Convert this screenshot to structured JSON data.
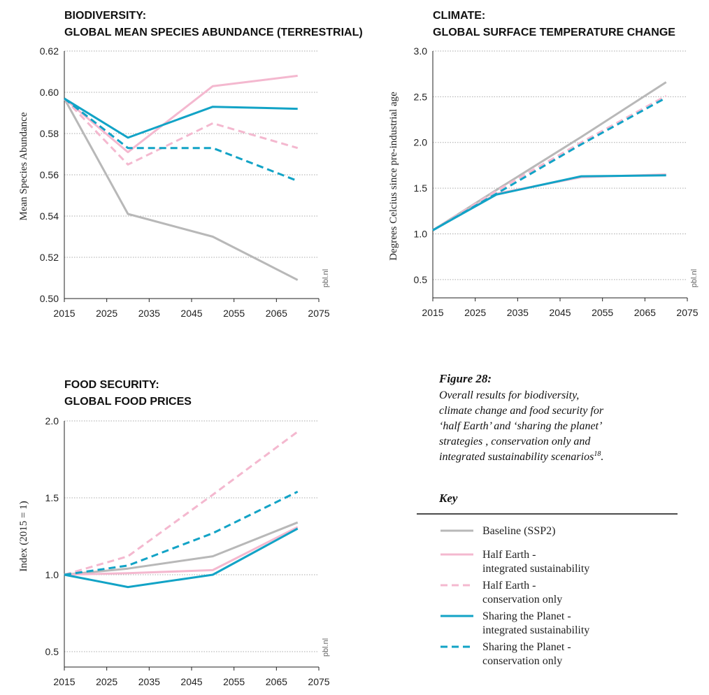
{
  "colors": {
    "baseline": "#b8b8b8",
    "half_earth": "#f4b8cf",
    "sharing": "#12a3c6",
    "grid": "#aaaaaa",
    "axis": "#222222"
  },
  "chart_data": [
    {
      "id": "biodiversity",
      "type": "line",
      "title_line1": "BIODIVERSITY:",
      "title_line2": "GLOBAL MEAN SPECIES ABUNDANCE (TERRESTRIAL)",
      "xlabel": "",
      "ylabel": "Mean Species Abundance",
      "xlim": [
        2015,
        2075
      ],
      "ylim": [
        0.5,
        0.62
      ],
      "x_ticks": [
        2015,
        2025,
        2035,
        2045,
        2055,
        2065,
        2075
      ],
      "y_ticks": [
        0.5,
        0.52,
        0.54,
        0.56,
        0.58,
        0.6,
        0.62
      ],
      "y_tick_labels": [
        "0.50",
        "0.52",
        "0.54",
        "0.56",
        "0.58",
        "0.60",
        "0.62"
      ],
      "grid": "horizontal",
      "credit": "pbl.nl",
      "x": [
        2015,
        2030,
        2050,
        2070
      ],
      "series": [
        {
          "name": "Baseline (SSP2)",
          "style": "solid",
          "color_key": "baseline",
          "values": [
            0.597,
            0.541,
            0.53,
            0.509
          ]
        },
        {
          "name": "Half Earth - integrated sustainability",
          "style": "solid",
          "color_key": "half_earth",
          "values": [
            0.597,
            0.571,
            0.603,
            0.608
          ]
        },
        {
          "name": "Half Earth - conservation only",
          "style": "dashed",
          "color_key": "half_earth",
          "values": [
            0.597,
            0.565,
            0.585,
            0.573
          ]
        },
        {
          "name": "Sharing the Planet - integrated sustainability",
          "style": "solid",
          "color_key": "sharing",
          "values": [
            0.597,
            0.578,
            0.593,
            0.592
          ]
        },
        {
          "name": "Sharing the Planet - conservation only",
          "style": "dashed",
          "color_key": "sharing",
          "values": [
            0.597,
            0.573,
            0.573,
            0.557
          ]
        }
      ]
    },
    {
      "id": "climate",
      "type": "line",
      "title_line1": "CLIMATE:",
      "title_line2": "GLOBAL SURFACE TEMPERATURE CHANGE",
      "xlabel": "",
      "ylabel": "Degrees Celcius since pre-industrial age",
      "xlim": [
        2015,
        2075
      ],
      "ylim": [
        0.3,
        3.0
      ],
      "x_ticks": [
        2015,
        2025,
        2035,
        2045,
        2055,
        2065,
        2075
      ],
      "y_ticks": [
        0.5,
        1.0,
        1.5,
        2.0,
        2.5,
        3.0
      ],
      "y_tick_labels": [
        "0.5",
        "1.0",
        "1.5",
        "2.0",
        "2.5",
        "3.0"
      ],
      "grid": "horizontal",
      "credit": "pbl.nl",
      "x": [
        2015,
        2030,
        2050,
        2070
      ],
      "series": [
        {
          "name": "Baseline (SSP2)",
          "style": "solid",
          "color_key": "baseline",
          "values": [
            1.04,
            1.48,
            2.06,
            2.66
          ]
        },
        {
          "name": "Half Earth - integrated sustainability",
          "style": "solid",
          "color_key": "half_earth",
          "values": [
            1.04,
            1.44,
            1.62,
            1.65
          ]
        },
        {
          "name": "Half Earth - conservation only",
          "style": "dashed",
          "color_key": "half_earth",
          "values": [
            1.04,
            1.47,
            2.0,
            2.51
          ]
        },
        {
          "name": "Sharing the Planet - integrated sustainability",
          "style": "solid",
          "color_key": "sharing",
          "values": [
            1.04,
            1.43,
            1.63,
            1.64
          ]
        },
        {
          "name": "Sharing the Planet - conservation only",
          "style": "dashed",
          "color_key": "sharing",
          "values": [
            1.04,
            1.44,
            1.98,
            2.49
          ]
        }
      ]
    },
    {
      "id": "food",
      "type": "line",
      "title_line1": "FOOD SECURITY:",
      "title_line2": "GLOBAL FOOD PRICES",
      "xlabel": "",
      "ylabel": "Index (2015 = 1)",
      "xlim": [
        2015,
        2075
      ],
      "ylim": [
        0.4,
        2.0
      ],
      "x_ticks": [
        2015,
        2025,
        2035,
        2045,
        2055,
        2065,
        2075
      ],
      "y_ticks": [
        0.5,
        1.0,
        1.5,
        2.0
      ],
      "y_tick_labels": [
        "0.5",
        "1.0",
        "1.5",
        "2.0"
      ],
      "grid": "horizontal",
      "credit": "pbl.nl",
      "x": [
        2015,
        2030,
        2050,
        2070
      ],
      "series": [
        {
          "name": "Baseline (SSP2)",
          "style": "solid",
          "color_key": "baseline",
          "values": [
            1.0,
            1.04,
            1.12,
            1.34
          ]
        },
        {
          "name": "Half Earth - integrated sustainability",
          "style": "solid",
          "color_key": "half_earth",
          "values": [
            1.0,
            1.01,
            1.03,
            1.31
          ]
        },
        {
          "name": "Half Earth - conservation only",
          "style": "dashed",
          "color_key": "half_earth",
          "values": [
            1.0,
            1.12,
            1.52,
            1.93
          ]
        },
        {
          "name": "Sharing the Planet - integrated sustainability",
          "style": "solid",
          "color_key": "sharing",
          "values": [
            1.0,
            0.92,
            1.0,
            1.3
          ]
        },
        {
          "name": "Sharing the Planet - conservation only",
          "style": "dashed",
          "color_key": "sharing",
          "values": [
            1.0,
            1.06,
            1.27,
            1.54
          ]
        }
      ]
    }
  ],
  "figure": {
    "title": "Figure 28:",
    "caption_lines": [
      "Overall results for biodiversity,",
      "climate change and food security for",
      "‘half Earth’ and ‘sharing the planet’",
      "strategies , conservation only and",
      "integrated sustainability scenarios"
    ],
    "caption_footnote": "18",
    "caption_end": "."
  },
  "key": {
    "title": "Key",
    "items": [
      {
        "line1": "Baseline (SSP2)",
        "line2": "",
        "style": "solid",
        "color_key": "baseline"
      },
      {
        "line1": "Half Earth -",
        "line2": "integrated sustainability",
        "style": "solid",
        "color_key": "half_earth"
      },
      {
        "line1": "Half Earth -",
        "line2": "conservation only",
        "style": "dashed",
        "color_key": "half_earth"
      },
      {
        "line1": "Sharing the Planet -",
        "line2": "integrated sustainability",
        "style": "solid",
        "color_key": "sharing"
      },
      {
        "line1": "Sharing the Planet -",
        "line2": "conservation only",
        "style": "dashed",
        "color_key": "sharing"
      }
    ]
  }
}
